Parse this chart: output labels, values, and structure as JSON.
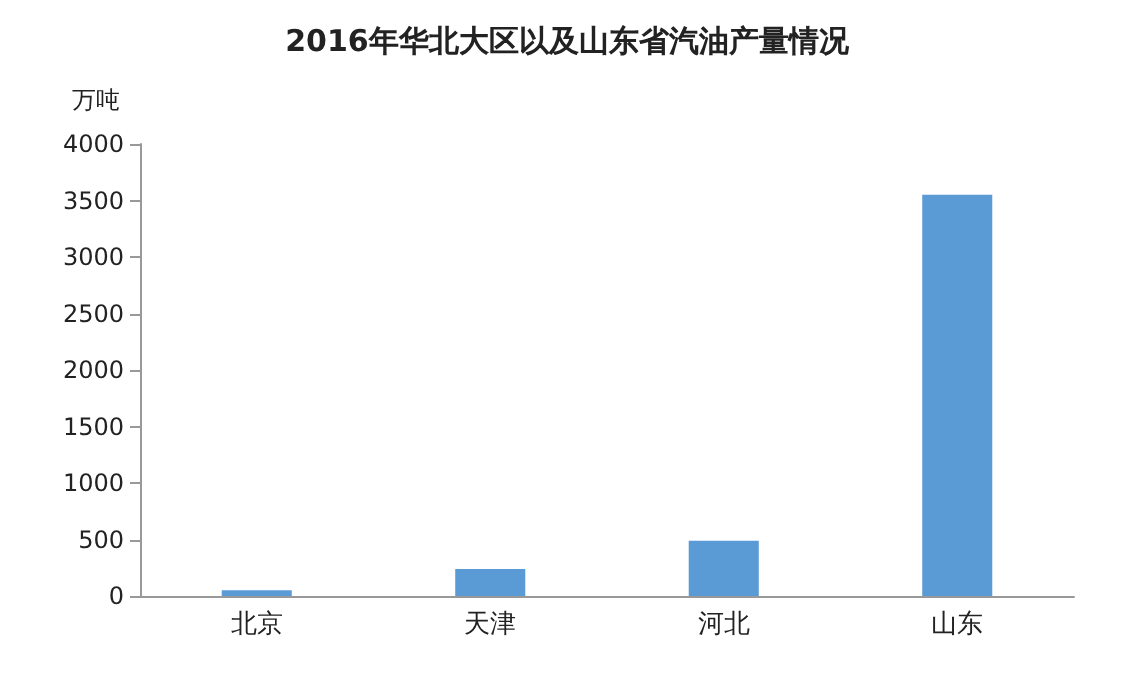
{
  "chart_data": {
    "type": "bar",
    "title": "2016年华北大区以及山东省汽油产量情况",
    "ylabel": "万吨",
    "categories": [
      "北京",
      "天津",
      "河北",
      "山东"
    ],
    "values": [
      50,
      240,
      490,
      3550
    ],
    "color": "#5b9bd5",
    "ylim": [
      0,
      4000
    ],
    "yticks": [
      0,
      500,
      1000,
      1500,
      2000,
      2500,
      3000,
      3500,
      4000
    ],
    "grid": false
  }
}
